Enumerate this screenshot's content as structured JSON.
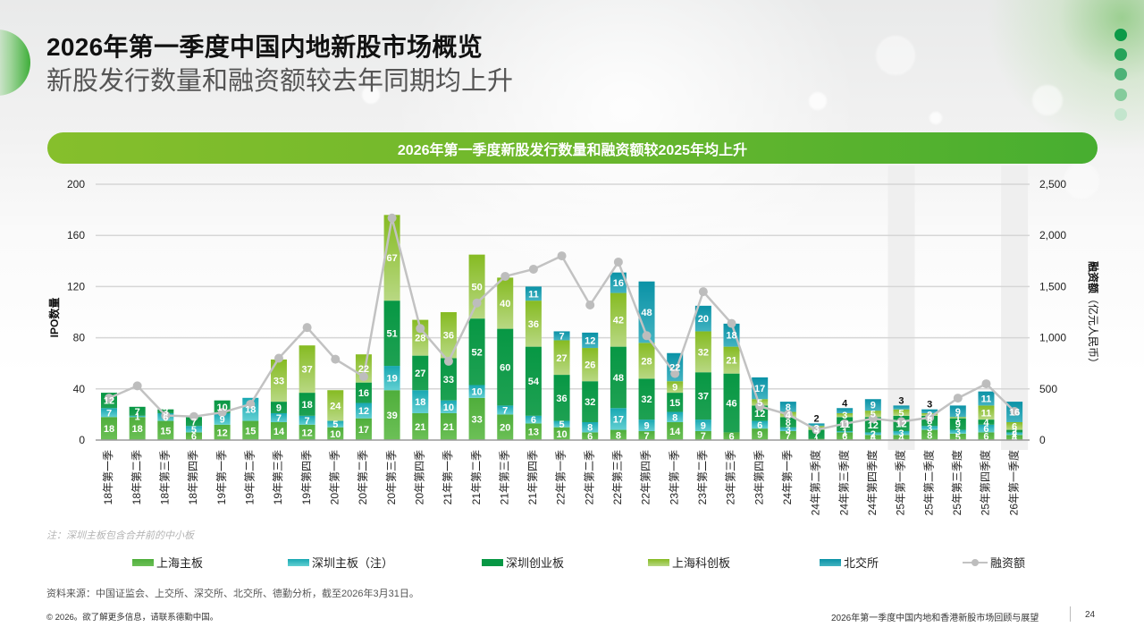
{
  "header": {
    "title": "2026年第一季度中国内地新股市场概览",
    "subtitle": "新股发行数量和融资额较去年同期均上升"
  },
  "chart_header": "2026年第一季度新股发行数量和融资额较2025年均上升",
  "chart_data": {
    "type": "bar",
    "stacked": true,
    "title": "2026年第一季度新股发行数量和融资额较2025年均上升",
    "categories": [
      "18年第一季",
      "18年第二季",
      "18年第三季",
      "18年第四季",
      "19年第一季",
      "19年第二季",
      "19年第三季",
      "19年第四季",
      "20年第一季",
      "20年第二季",
      "20年第三季",
      "20年第四季",
      "21年第一季",
      "21年第二季",
      "21年第三季",
      "21年第四季",
      "22年第一季",
      "22年第二季",
      "22年第三季",
      "22年第四季",
      "23年第一季",
      "23年第二季",
      "23年第三季",
      "23年第四季",
      "24年第一季",
      "24年第二季度",
      "24年第三季度",
      "24年第四季度",
      "25年第一季度",
      "25年第二季度",
      "25年第三季度",
      "25年第四季度",
      "26年第一季度"
    ],
    "highlight_categories": [
      "25年第一季度",
      "26年第一季度"
    ],
    "series": [
      {
        "key": "sh_main",
        "name": "上海主板",
        "color": "#4fae3b",
        "color_light": "#6cc057",
        "values": [
          18,
          18,
          15,
          6,
          12,
          15,
          14,
          12,
          10,
          17,
          39,
          21,
          21,
          33,
          20,
          13,
          10,
          6,
          8,
          7,
          14,
          7,
          6,
          9,
          7,
          1,
          6,
          4,
          4,
          8,
          5,
          6,
          4
        ]
      },
      {
        "key": "sz_main",
        "name": "深圳主板（注）",
        "color": "#18a8b2",
        "color_light": "#62cfd2",
        "values": [
          7,
          1,
          6,
          5,
          9,
          18,
          7,
          7,
          5,
          12,
          19,
          18,
          10,
          10,
          7,
          6,
          5,
          8,
          17,
          9,
          8,
          9,
          0,
          6,
          3,
          0,
          1,
          2,
          3,
          3,
          3,
          6,
          2
        ]
      },
      {
        "key": "chinext",
        "name": "深圳创业板",
        "color": "#079744",
        "color_light": "#1ea152",
        "values": [
          12,
          7,
          3,
          7,
          10,
          0,
          9,
          18,
          0,
          16,
          51,
          27,
          33,
          52,
          60,
          54,
          36,
          32,
          48,
          32,
          15,
          37,
          46,
          12,
          8,
          7,
          11,
          12,
          12,
          8,
          9,
          4,
          2
        ]
      },
      {
        "key": "star",
        "name": "上海科创板",
        "color": "#86bb22",
        "color_light": "#b8d883",
        "values": [
          0,
          0,
          0,
          0,
          0,
          0,
          33,
          37,
          24,
          22,
          67,
          28,
          36,
          50,
          40,
          36,
          27,
          26,
          42,
          28,
          9,
          32,
          21,
          5,
          4,
          3,
          3,
          5,
          5,
          2,
          1,
          11,
          6
        ]
      },
      {
        "key": "bse",
        "name": "北交所",
        "color": "#0a92a6",
        "color_light": "#43b3c1",
        "values": [
          0,
          0,
          0,
          0,
          0,
          0,
          0,
          0,
          0,
          0,
          0,
          0,
          0,
          0,
          0,
          11,
          7,
          12,
          16,
          48,
          22,
          20,
          18,
          17,
          8,
          2,
          4,
          9,
          3,
          3,
          9,
          11,
          16
        ]
      }
    ],
    "line_series": {
      "name": "融资额",
      "color": "#c2c2c2",
      "axis": "right",
      "values": [
        410,
        530,
        240,
        230,
        270,
        350,
        800,
        1100,
        790,
        620,
        2170,
        1090,
        770,
        1340,
        1600,
        1670,
        1800,
        1320,
        1740,
        1020,
        650,
        1450,
        1140,
        330,
        250,
        100,
        160,
        210,
        180,
        220,
        410,
        550,
        280
      ]
    },
    "y_left": {
      "label": "IPO数量",
      "min": 0,
      "max": 200,
      "ticks": [
        "0",
        "40",
        "80",
        "120",
        "160",
        "200"
      ],
      "tick_values": [
        0,
        40,
        80,
        120,
        160,
        200
      ]
    },
    "y_right": {
      "label_bold": "融资额",
      "label_unit": "（亿元人民币）",
      "min": 0,
      "max": 2500,
      "ticks": [
        "0",
        "500",
        "1,000",
        "1,500",
        "2,000",
        "2,500"
      ],
      "tick_values": [
        0,
        500,
        1000,
        1500,
        2000,
        2500
      ]
    },
    "xlabel": "",
    "grid": true,
    "legend_position": "bottom"
  },
  "note": "注：深圳主板包含合并前的中小板",
  "legend": [
    {
      "label": "上海主板",
      "color": "#4fae3b"
    },
    {
      "label": "深圳主板（注）",
      "color": "#18a8b2"
    },
    {
      "label": "深圳创业板",
      "color": "#079744"
    },
    {
      "label": "上海科创板",
      "color": "#86bb22"
    },
    {
      "label": "北交所",
      "color": "#0a92a6"
    },
    {
      "label": "融资额",
      "color": "#c2c2c2"
    }
  ],
  "source": "资料来源：中国证监会、上交所、深交所、北交所、德勤分析，截至2026年3月31日。",
  "footer": {
    "copyright": "© 2026。欲了解更多信息，请联系德勤中国。",
    "report_title": "2026年第一季度中国内地和香港新股市场回顾与展望",
    "page_number": "24"
  },
  "colors": {
    "brand_green": "#47ae30",
    "header_green_light": "#86bf2c",
    "dots": [
      "#0c9a48",
      "#25a359",
      "#4db277",
      "#84cb9b",
      "#c3e5cd"
    ]
  }
}
